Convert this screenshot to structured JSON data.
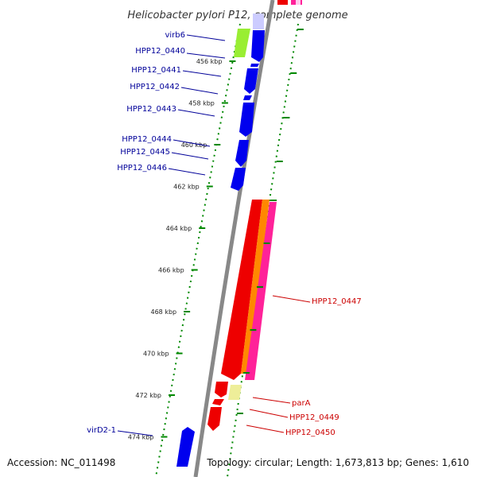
{
  "title": "Helicobacter pylori P12, complete genome",
  "footer": {
    "accession": "Accession: NC_011498",
    "topology": "Topology: circular; Length: 1,673,813 bp; Genes: 1,610"
  },
  "colors": {
    "forward_gene": "#0000ee",
    "reverse_gene": "#ee0000",
    "rna_green": "#99ee33",
    "orange": "#ff8800",
    "magenta": "#ff2299",
    "pale_yellow": "#eeee99",
    "backbone": "#888888",
    "tick": "#008800",
    "label_blue": "#000099",
    "label_red": "#cc0000"
  },
  "scale": {
    "unit": "kbp",
    "ticks": [
      {
        "kbp": 456,
        "label": "456 kbp"
      },
      {
        "kbp": 458,
        "label": "458 kbp"
      },
      {
        "kbp": 460,
        "label": "460 kbp"
      },
      {
        "kbp": 462,
        "label": "462 kbp"
      },
      {
        "kbp": 464,
        "label": "464 kbp"
      },
      {
        "kbp": 466,
        "label": "466 kbp"
      },
      {
        "kbp": 468,
        "label": "468 kbp"
      },
      {
        "kbp": 470,
        "label": "470 kbp"
      },
      {
        "kbp": 472,
        "label": "472 kbp"
      },
      {
        "kbp": 474,
        "label": "474 kbp"
      }
    ]
  },
  "gene_labels": {
    "forward": [
      "virb6",
      "HPP12_0440",
      "HPP12_0441",
      "HPP12_0442",
      "HPP12_0443",
      "HPP12_0444",
      "HPP12_0445",
      "HPP12_0446",
      "virD2-1"
    ],
    "reverse": [
      "HPP12_0447",
      "parA",
      "HPP12_0449",
      "HPP12_0450"
    ]
  }
}
